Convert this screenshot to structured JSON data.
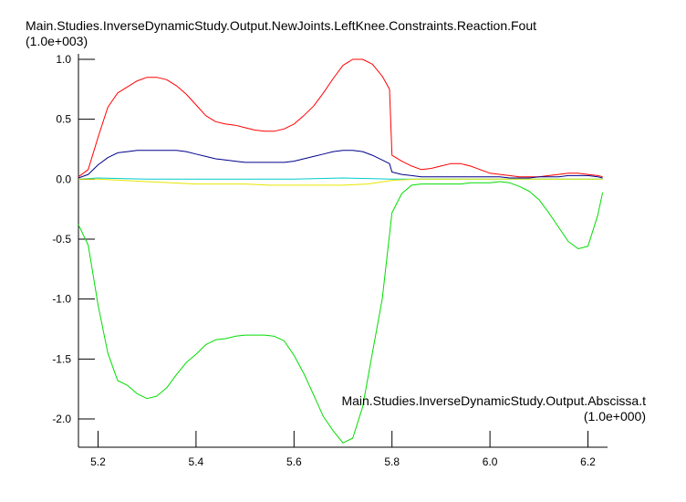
{
  "chart_data": {
    "type": "line",
    "title": "Main.Studies.InverseDynamicStudy.Output.NewJoints.LeftKnee.Constraints.Reaction.Fout",
    "y_scale_label": "(1.0e+003)",
    "xlabel": "Main.Studies.InverseDynamicStudy.Output.Abscissa.t",
    "x_scale_label": "(1.0e+000)",
    "xlim": [
      5.16,
      6.24
    ],
    "ylim": [
      -2.2,
      1.05
    ],
    "x_ticks": [
      "5.2",
      "5.4",
      "5.6",
      "5.8",
      "6.0",
      "6.2"
    ],
    "x_tick_values": [
      5.2,
      5.4,
      5.6,
      5.8,
      6.0,
      6.2
    ],
    "y_ticks": [
      "1.0",
      "0.5",
      "0.0",
      "-0.5",
      "-1.0",
      "-1.5",
      "-2.0"
    ],
    "y_tick_values": [
      1.0,
      0.5,
      0.0,
      -0.5,
      -1.0,
      -1.5,
      -2.0
    ],
    "grid": false,
    "series": [
      {
        "color": "#ff0000",
        "x": [
          5.16,
          5.18,
          5.2,
          5.22,
          5.24,
          5.26,
          5.28,
          5.3,
          5.32,
          5.34,
          5.36,
          5.38,
          5.4,
          5.42,
          5.44,
          5.46,
          5.48,
          5.5,
          5.52,
          5.54,
          5.56,
          5.58,
          5.6,
          5.62,
          5.64,
          5.66,
          5.68,
          5.7,
          5.72,
          5.74,
          5.76,
          5.78,
          5.795,
          5.8,
          5.82,
          5.84,
          5.86,
          5.88,
          5.9,
          5.92,
          5.94,
          5.96,
          5.98,
          6.0,
          6.02,
          6.04,
          6.06,
          6.08,
          6.1,
          6.12,
          6.14,
          6.16,
          6.18,
          6.2,
          6.22,
          6.23
        ],
        "y": [
          0.02,
          0.08,
          0.35,
          0.6,
          0.72,
          0.77,
          0.82,
          0.85,
          0.85,
          0.83,
          0.78,
          0.71,
          0.62,
          0.53,
          0.48,
          0.46,
          0.45,
          0.43,
          0.41,
          0.4,
          0.4,
          0.42,
          0.46,
          0.53,
          0.61,
          0.72,
          0.84,
          0.95,
          1.0,
          1.0,
          0.96,
          0.86,
          0.75,
          0.2,
          0.15,
          0.11,
          0.08,
          0.09,
          0.11,
          0.13,
          0.13,
          0.11,
          0.08,
          0.05,
          0.04,
          0.03,
          0.02,
          0.02,
          0.02,
          0.03,
          0.04,
          0.05,
          0.05,
          0.04,
          0.03,
          0.02
        ]
      },
      {
        "color": "#00008b",
        "x": [
          5.16,
          5.18,
          5.2,
          5.22,
          5.24,
          5.26,
          5.28,
          5.3,
          5.32,
          5.34,
          5.36,
          5.38,
          5.4,
          5.42,
          5.44,
          5.46,
          5.48,
          5.5,
          5.52,
          5.54,
          5.56,
          5.58,
          5.6,
          5.62,
          5.64,
          5.66,
          5.68,
          5.7,
          5.72,
          5.74,
          5.76,
          5.78,
          5.795,
          5.8,
          5.82,
          5.84,
          5.86,
          5.88,
          5.9,
          5.92,
          5.94,
          5.96,
          5.98,
          6.0,
          6.02,
          6.04,
          6.06,
          6.08,
          6.1,
          6.12,
          6.14,
          6.16,
          6.18,
          6.2,
          6.22,
          6.23
        ],
        "y": [
          0.01,
          0.04,
          0.12,
          0.18,
          0.22,
          0.23,
          0.24,
          0.24,
          0.24,
          0.24,
          0.24,
          0.23,
          0.21,
          0.19,
          0.17,
          0.16,
          0.15,
          0.14,
          0.14,
          0.14,
          0.14,
          0.14,
          0.15,
          0.17,
          0.19,
          0.21,
          0.23,
          0.24,
          0.24,
          0.23,
          0.2,
          0.16,
          0.13,
          0.06,
          0.04,
          0.03,
          0.02,
          0.02,
          0.02,
          0.02,
          0.02,
          0.02,
          0.02,
          0.02,
          0.02,
          0.01,
          0.01,
          0.01,
          0.02,
          0.02,
          0.02,
          0.03,
          0.03,
          0.03,
          0.02,
          0.01
        ]
      },
      {
        "color": "#00cccc",
        "x": [
          5.16,
          5.2,
          5.3,
          5.4,
          5.5,
          5.6,
          5.7,
          5.8,
          5.9,
          6.0,
          6.1,
          6.2,
          6.23
        ],
        "y": [
          0.0,
          0.01,
          0.0,
          0.0,
          0.0,
          0.0,
          0.01,
          0.0,
          0.0,
          0.0,
          0.0,
          0.0,
          0.0
        ]
      },
      {
        "color": "#e6e600",
        "x": [
          5.16,
          5.2,
          5.25,
          5.3,
          5.35,
          5.4,
          5.45,
          5.5,
          5.55,
          5.6,
          5.65,
          5.7,
          5.75,
          5.8,
          5.85,
          5.9,
          6.0,
          6.1,
          6.2,
          6.23
        ],
        "y": [
          0.0,
          0.0,
          -0.01,
          -0.02,
          -0.03,
          -0.04,
          -0.04,
          -0.04,
          -0.05,
          -0.05,
          -0.05,
          -0.05,
          -0.04,
          -0.01,
          0.0,
          0.0,
          0.0,
          0.0,
          0.0,
          0.0
        ]
      },
      {
        "color": "#00dd00",
        "x": [
          5.16,
          5.18,
          5.2,
          5.22,
          5.24,
          5.26,
          5.28,
          5.3,
          5.32,
          5.34,
          5.36,
          5.38,
          5.4,
          5.42,
          5.44,
          5.46,
          5.48,
          5.5,
          5.52,
          5.54,
          5.56,
          5.58,
          5.6,
          5.62,
          5.64,
          5.66,
          5.68,
          5.7,
          5.72,
          5.74,
          5.76,
          5.78,
          5.8,
          5.82,
          5.84,
          5.86,
          5.88,
          5.9,
          5.92,
          5.94,
          5.96,
          5.98,
          6.0,
          6.02,
          6.04,
          6.06,
          6.08,
          6.1,
          6.12,
          6.14,
          6.16,
          6.18,
          6.2,
          6.22,
          6.23
        ],
        "y": [
          -0.38,
          -0.55,
          -1.05,
          -1.45,
          -1.68,
          -1.72,
          -1.79,
          -1.83,
          -1.81,
          -1.74,
          -1.63,
          -1.53,
          -1.46,
          -1.38,
          -1.34,
          -1.33,
          -1.31,
          -1.3,
          -1.3,
          -1.3,
          -1.31,
          -1.35,
          -1.47,
          -1.62,
          -1.8,
          -1.98,
          -2.1,
          -2.2,
          -2.16,
          -1.9,
          -1.45,
          -1.0,
          -0.28,
          -0.12,
          -0.05,
          -0.04,
          -0.04,
          -0.04,
          -0.04,
          -0.04,
          -0.03,
          -0.03,
          -0.03,
          -0.02,
          -0.03,
          -0.06,
          -0.1,
          -0.17,
          -0.28,
          -0.4,
          -0.52,
          -0.58,
          -0.56,
          -0.3,
          -0.11
        ]
      }
    ]
  }
}
